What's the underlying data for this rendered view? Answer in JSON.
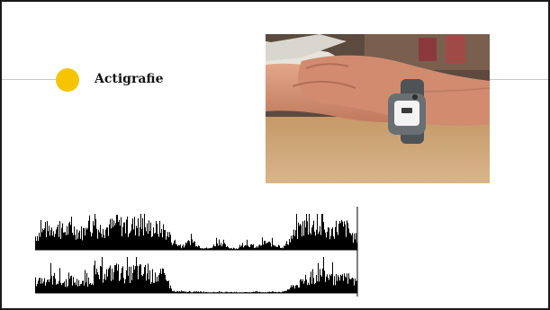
{
  "slide": {
    "title": "Actigrafie",
    "accent_color": "#f6c400",
    "photo": {
      "icon": "wrist-actigraph-photo"
    },
    "actigram": {
      "icon": "actigraphy-activity-trace",
      "rows": [
        {
          "profile": [
            0.55,
            0.8,
            0.9,
            0.75,
            0.85,
            0.7,
            0.95,
            0.85,
            0.9,
            1.0,
            0.95,
            1.0,
            0.9,
            0.85,
            0.8,
            0.3,
            0.1,
            0.4,
            0.1,
            0.05,
            0.35,
            0.08,
            0.05,
            0.25,
            0.08,
            0.3,
            0.2,
            0.1,
            0.55,
            0.9,
            1.0,
            0.85,
            0.7,
            0.95,
            0.85,
            0.3
          ]
        },
        {
          "profile": [
            0.45,
            0.55,
            0.6,
            0.4,
            0.5,
            0.35,
            0.55,
            0.75,
            0.8,
            0.85,
            0.7,
            0.9,
            0.75,
            0.65,
            0.7,
            0.05,
            0.05,
            0.04,
            0.05,
            0.03,
            0.04,
            0.03,
            0.02,
            0.03,
            0.04,
            0.03,
            0.05,
            0.04,
            0.25,
            0.4,
            0.55,
            0.75,
            0.65,
            0.5,
            0.6,
            0.4
          ]
        }
      ]
    }
  }
}
